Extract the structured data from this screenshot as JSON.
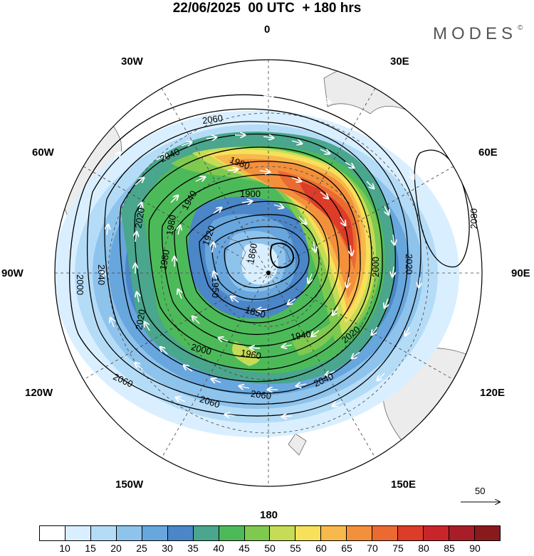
{
  "title": "22/06/2025  00 UTC  + 180 hrs",
  "brand": {
    "name": "MODES",
    "mark": "©"
  },
  "longitude_labels": {
    "n0": "0",
    "n30e": "30E",
    "n60e": "60E",
    "n90e": "90E",
    "n120e": "120E",
    "n150e": "150E",
    "n180": "180",
    "n150w": "150W",
    "n120w": "120W",
    "n90w": "90W",
    "n60w": "60W",
    "n30w": "30W"
  },
  "contour_labels": [
    "2060",
    "2040",
    "1980",
    "1900",
    "1940",
    "1980",
    "2020",
    "1920",
    "1860",
    "1980",
    "2020",
    "1950",
    "1850",
    "1940",
    "1960",
    "2000",
    "2020",
    "2040",
    "2060",
    "2060",
    "2000",
    "2000",
    "2080",
    "2040",
    "2020",
    "2060"
  ],
  "wind_reference": {
    "label": "50"
  },
  "colorbar": {
    "colors": [
      "#ffffff",
      "#d9efff",
      "#b5dcf7",
      "#8ec3ec",
      "#68a6de",
      "#4a86c8",
      "#4aa68c",
      "#4dba5a",
      "#7fc94f",
      "#c6dc56",
      "#f7e05a",
      "#f7b84c",
      "#f3903c",
      "#ea6a32",
      "#dc3c28",
      "#c8242a",
      "#a81e28",
      "#881a1e"
    ],
    "tick_labels": [
      "10",
      "15",
      "20",
      "25",
      "30",
      "35",
      "40",
      "45",
      "50",
      "55",
      "60",
      "65",
      "70",
      "75",
      "80",
      "85",
      "90"
    ]
  },
  "colors": {
    "grid": "#444444",
    "land": "#ececec",
    "contour": "#000000",
    "arrows": "#ffffff"
  }
}
